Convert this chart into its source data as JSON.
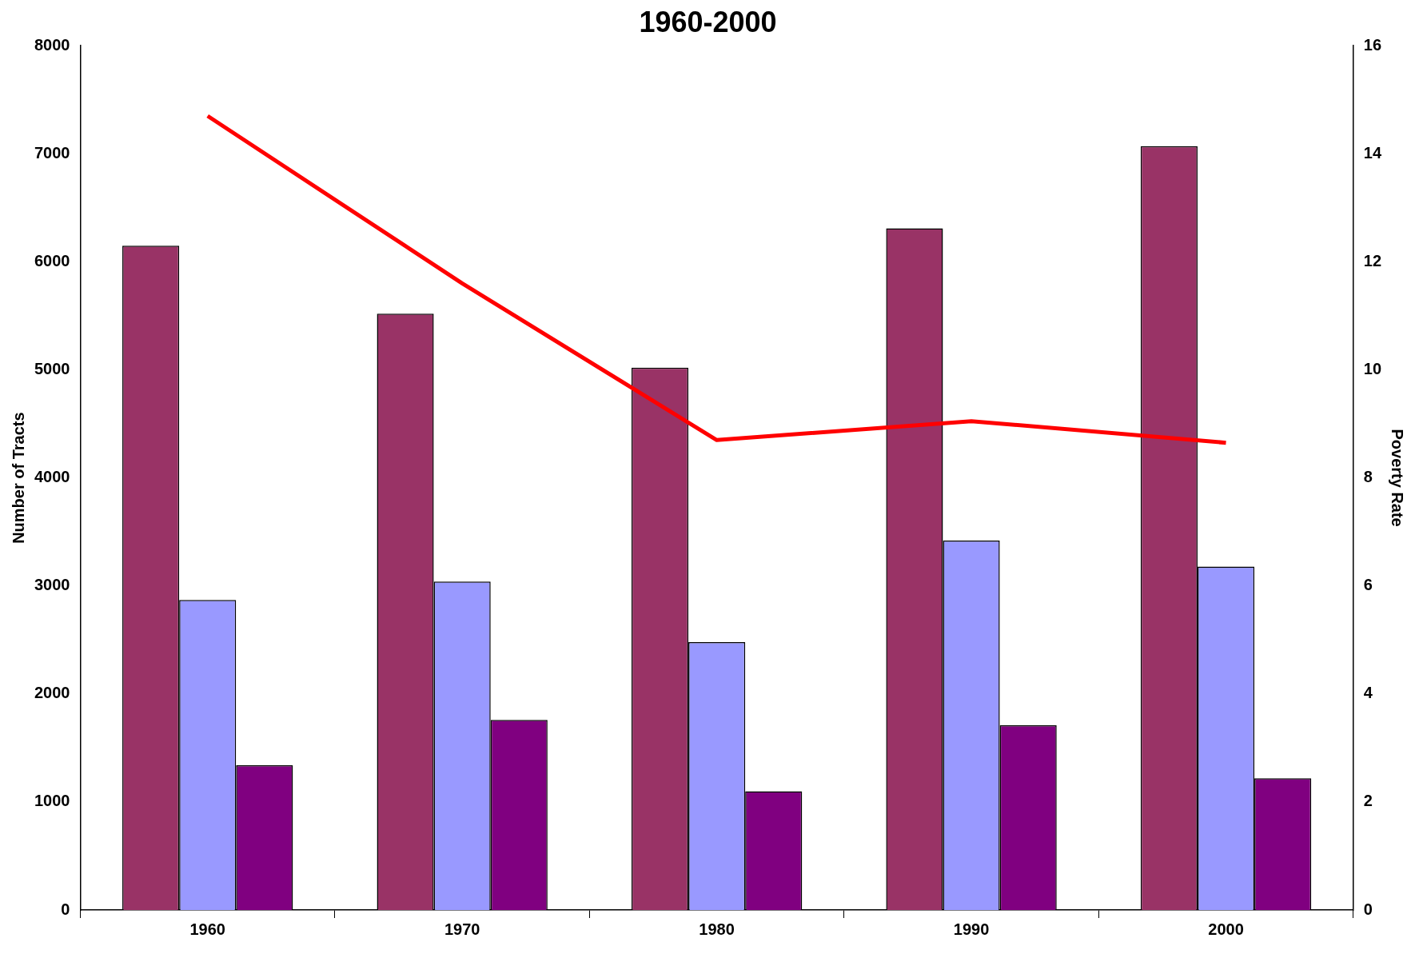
{
  "chart_data": {
    "type": "bar",
    "title": "1960-2000",
    "ylabel": "Number of Tracts",
    "y2label": "Poverty Rate",
    "categories": [
      "1960",
      "1970",
      "1980",
      "1990",
      "2000"
    ],
    "series": [
      {
        "color": "#993366",
        "values": [
          6150,
          5520,
          5020,
          6310,
          7070
        ]
      },
      {
        "color": "#9999ff",
        "values": [
          2870,
          3040,
          2480,
          3420,
          3180
        ]
      },
      {
        "color": "#800080",
        "values": [
          1340,
          1760,
          1100,
          1710,
          1220
        ]
      },
      {
        "type": "line",
        "axis": "y2",
        "color": "#ff0000",
        "values": [
          14.7,
          11.6,
          8.7,
          9.05,
          8.65
        ]
      }
    ],
    "ylim": [
      0,
      8000
    ],
    "yticks": [
      0,
      1000,
      2000,
      3000,
      4000,
      5000,
      6000,
      7000,
      8000
    ],
    "y2lim": [
      0,
      16
    ],
    "y2ticks": [
      0,
      2,
      4,
      6,
      8,
      10,
      12,
      14,
      16
    ],
    "grid": false,
    "legend": false
  }
}
